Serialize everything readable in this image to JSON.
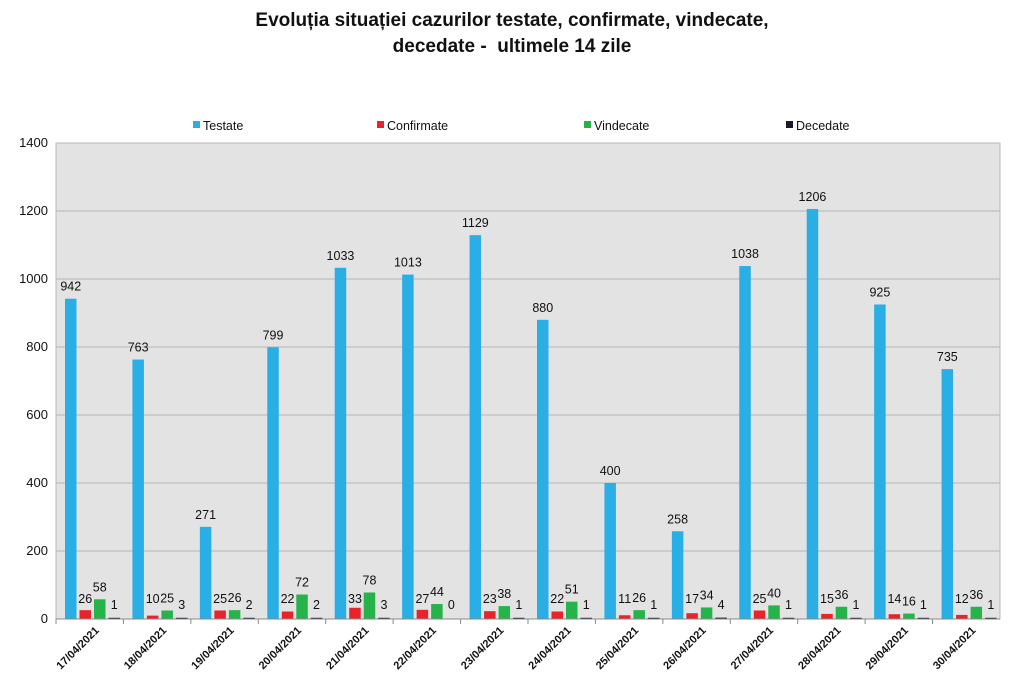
{
  "chart_data": {
    "type": "bar",
    "title_line1": "Evoluția situației cazurilor testate, confirmate, vindecate,",
    "title_line2": "decedate -  ultimele 14 zile",
    "categories": [
      "17/04/2021",
      "18/04/2021",
      "19/04/2021",
      "20/04/2021",
      "21/04/2021",
      "22/04/2021",
      "23/04/2021",
      "24/04/2021",
      "25/04/2021",
      "26/04/2021",
      "27/04/2021",
      "28/04/2021",
      "29/04/2021",
      "30/04/2021"
    ],
    "series": [
      {
        "name": "Testate",
        "color": "#29aee6",
        "values": [
          942,
          763,
          271,
          799,
          1033,
          1013,
          1129,
          880,
          400,
          258,
          1038,
          1206,
          925,
          735
        ]
      },
      {
        "name": "Confirmate",
        "color": "#e8232a",
        "values": [
          26,
          10,
          25,
          22,
          33,
          27,
          23,
          22,
          11,
          17,
          25,
          15,
          14,
          12
        ]
      },
      {
        "name": "Vindecate",
        "color": "#26b34a",
        "values": [
          58,
          25,
          26,
          72,
          78,
          44,
          38,
          51,
          26,
          34,
          40,
          36,
          16,
          36
        ]
      },
      {
        "name": "Decedate",
        "color": "#1a1a2e",
        "values": [
          1,
          3,
          2,
          2,
          3,
          0,
          1,
          1,
          1,
          4,
          1,
          1,
          1,
          1
        ]
      }
    ],
    "series_order_labels": [
      "1",
      "3",
      "2",
      "2",
      "3",
      "0",
      "1",
      "1",
      "1",
      "4",
      "1",
      "1",
      "1",
      "1"
    ],
    "y_ticks": [
      0,
      200,
      400,
      600,
      800,
      1000,
      1200,
      1400
    ],
    "ylim": [
      0,
      1400
    ],
    "grid": true,
    "legend_position": "top"
  }
}
